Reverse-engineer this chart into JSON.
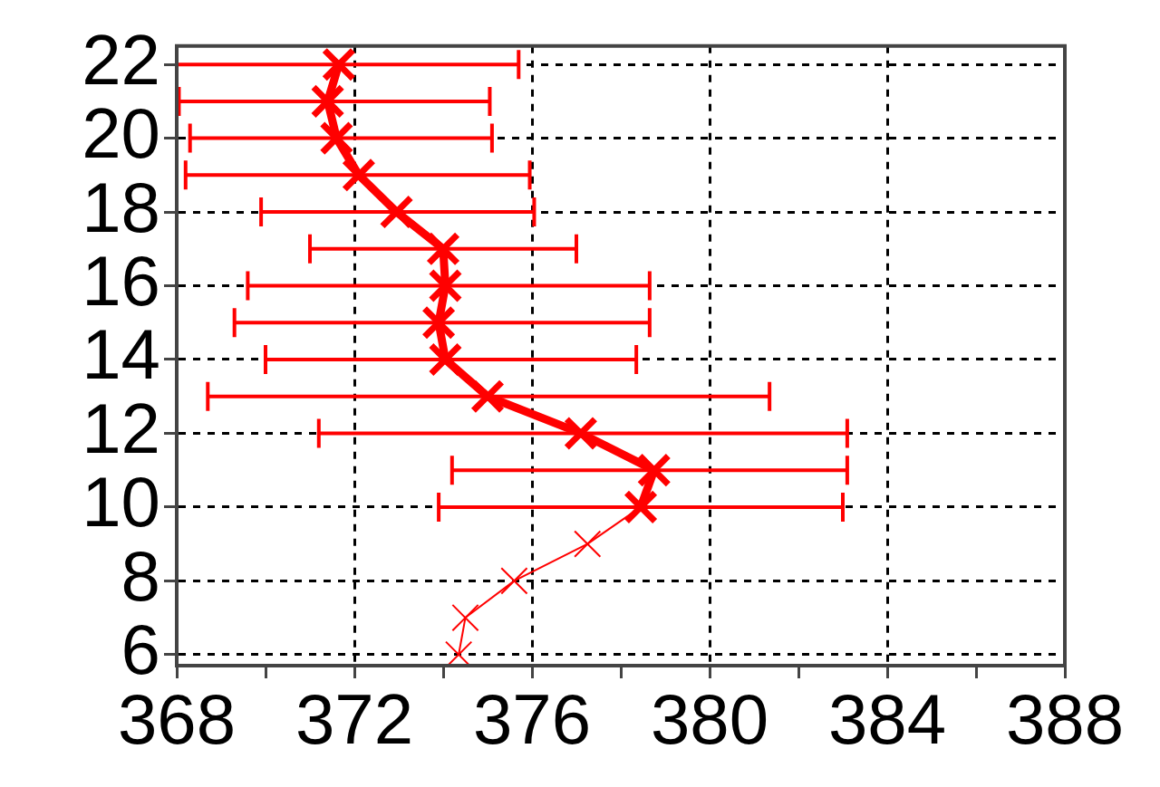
{
  "chart_data": {
    "type": "line",
    "xlim": [
      368,
      388
    ],
    "ylim": [
      5.7,
      22.5
    ],
    "xticks": [
      368,
      {
        "value": 370,
        "label": null
      },
      372,
      {
        "value": 374,
        "label": null
      },
      376,
      {
        "value": 378,
        "label": null
      },
      380,
      {
        "value": 382,
        "label": null
      },
      384,
      {
        "value": 386,
        "label": null
      },
      388
    ],
    "yticks": [
      6,
      8,
      10,
      12,
      14,
      16,
      18,
      20,
      22
    ],
    "grid": true,
    "legend": false,
    "line_style": "solid",
    "series": [
      {
        "color": "#ff0000",
        "marker": "cross",
        "x": [
          371.65,
          371.4,
          371.6,
          372.1,
          372.95,
          374.0,
          374.05,
          373.9,
          374.05,
          375.0,
          377.1,
          378.75,
          378.45
        ],
        "values": [
          22,
          21,
          20,
          19,
          18,
          17,
          16,
          15,
          14,
          13,
          12,
          11,
          10
        ],
        "xerrors": [
          [
            368,
            375.7
          ],
          [
            368.05,
            375.05
          ],
          [
            368.3,
            375.1
          ],
          [
            368.2,
            375.95
          ],
          [
            369.9,
            376.05
          ],
          [
            371.0,
            377.0
          ],
          [
            369.6,
            378.65
          ],
          [
            369.3,
            378.65
          ],
          [
            370.0,
            378.35
          ],
          [
            368.7,
            381.35
          ],
          [
            371.2,
            383.1
          ],
          [
            374.2,
            383.1
          ],
          [
            373.9,
            383.0
          ]
        ]
      },
      {
        "color": "#ff0000",
        "marker": "cross",
        "x": [
          378.45,
          377.25,
          375.6,
          374.5,
          374.35
        ],
        "values": [
          10,
          9,
          8,
          7,
          6
        ]
      }
    ]
  }
}
